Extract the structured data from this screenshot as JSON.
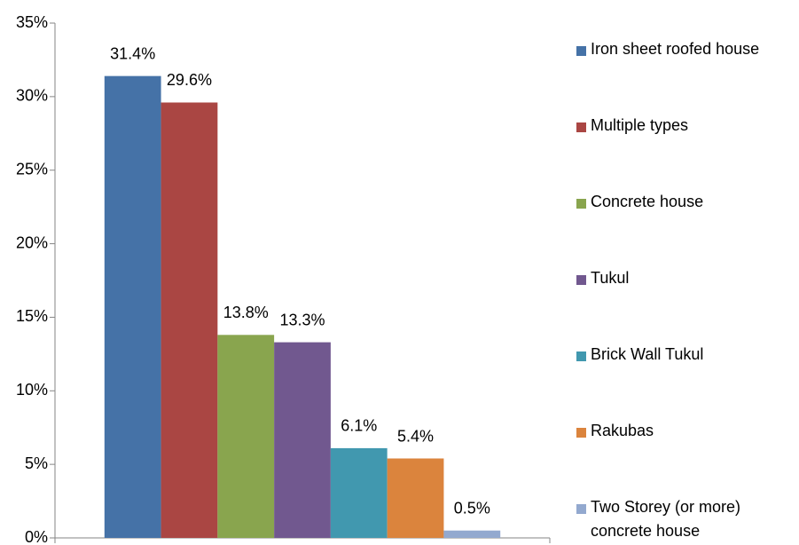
{
  "chart_data": {
    "type": "bar",
    "categories": [
      null
    ],
    "series": [
      {
        "name": "Iron sheet roofed house",
        "color": "#4572a7",
        "values": [
          31.4
        ],
        "value_labels": [
          "31.4%"
        ]
      },
      {
        "name": "Multiple types",
        "color": "#aa4643",
        "values": [
          29.6
        ],
        "value_labels": [
          "29.6%"
        ]
      },
      {
        "name": "Concrete house",
        "color": "#89a54e",
        "values": [
          13.8
        ],
        "value_labels": [
          "13.8%"
        ]
      },
      {
        "name": "Tukul",
        "color": "#71588f",
        "values": [
          13.3
        ],
        "value_labels": [
          "13.3%"
        ]
      },
      {
        "name": "Brick Wall Tukul",
        "color": "#4198af",
        "values": [
          6.1
        ],
        "value_labels": [
          "6.1%"
        ]
      },
      {
        "name": "Rakubas",
        "color": "#db843d",
        "values": [
          5.4
        ],
        "value_labels": [
          "5.4%"
        ]
      },
      {
        "name": "Two Storey (or more) concrete house",
        "color": "#93a9cf",
        "values": [
          0.5
        ],
        "value_labels": [
          "0.5%"
        ]
      }
    ],
    "ylim": [
      0,
      35
    ],
    "yticks": [
      {
        "value": 0,
        "label": "0%"
      },
      {
        "value": 5,
        "label": "5%"
      },
      {
        "value": 10,
        "label": "10%"
      },
      {
        "value": 15,
        "label": "15%"
      },
      {
        "value": 20,
        "label": "20%"
      },
      {
        "value": 25,
        "label": "25%"
      },
      {
        "value": 30,
        "label": "30%"
      },
      {
        "value": 35,
        "label": "35%"
      }
    ],
    "grid": false,
    "legend": "right"
  }
}
